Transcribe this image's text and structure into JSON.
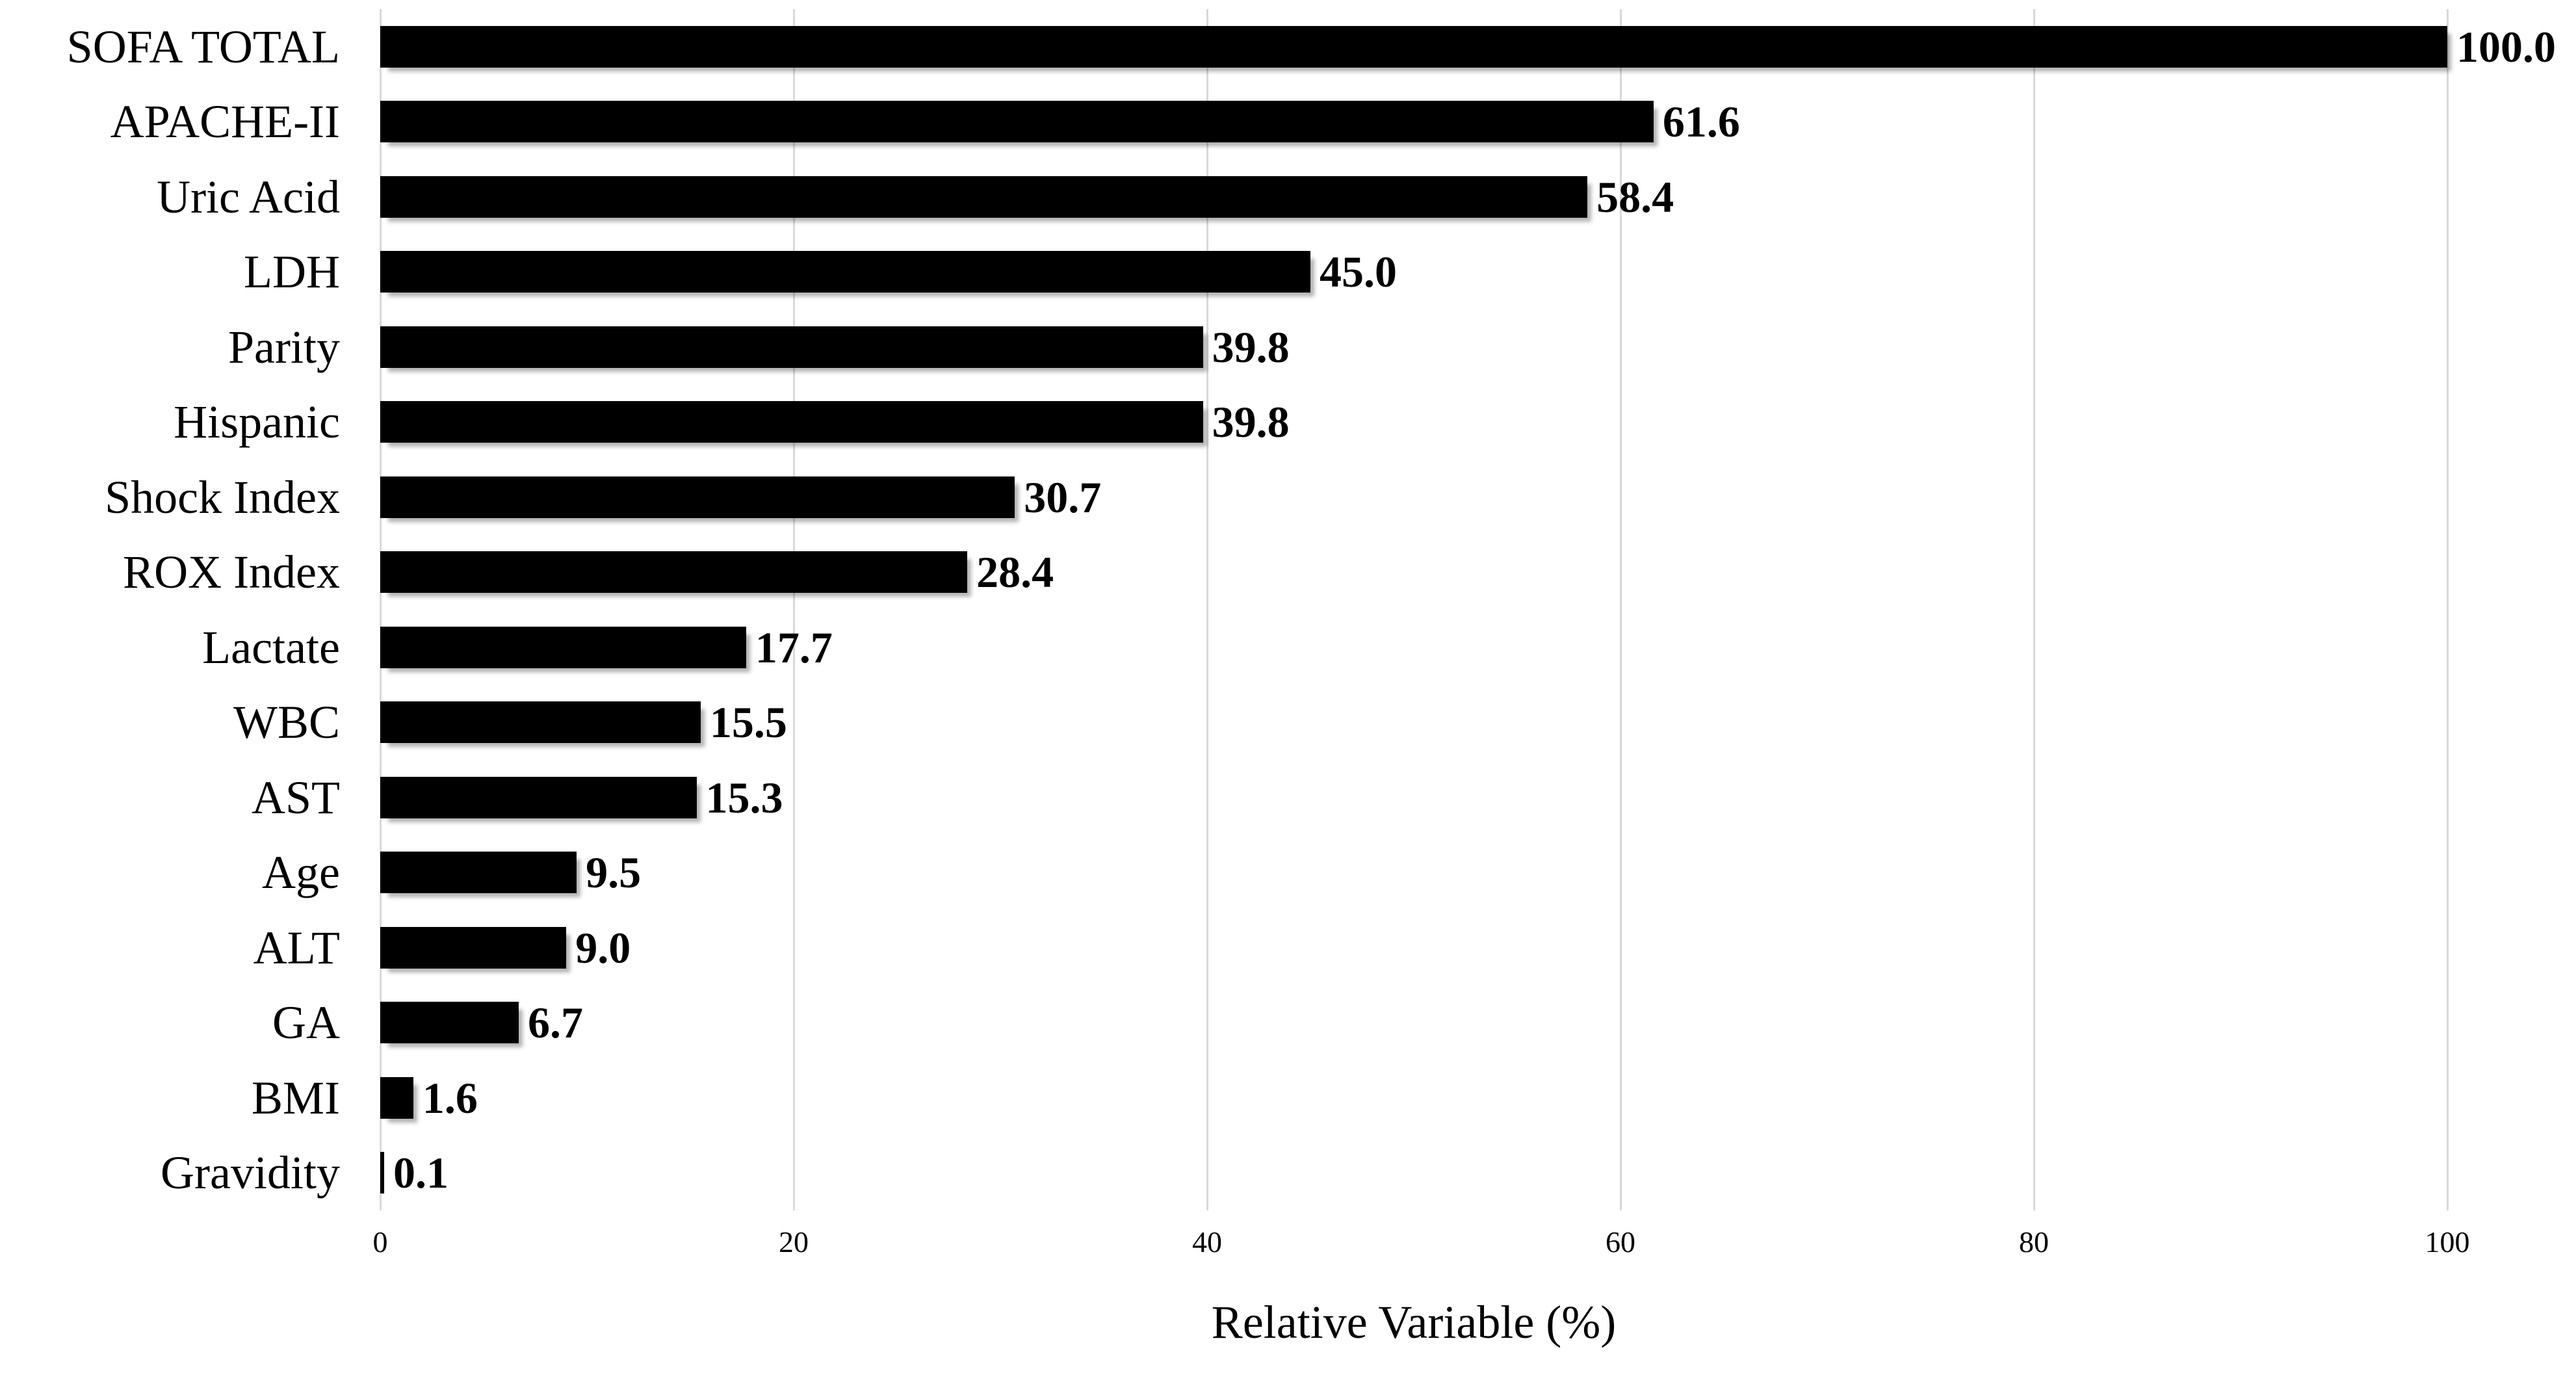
{
  "chart_data": {
    "type": "bar",
    "orientation": "horizontal",
    "title": "",
    "categories": [
      "SOFA TOTAL",
      "APACHE-II",
      "Uric Acid",
      "LDH",
      "Parity",
      "Hispanic",
      "Shock Index",
      "ROX Index",
      "Lactate",
      "WBC",
      "AST",
      "Age",
      "ALT",
      "GA",
      "BMI",
      "Gravidity"
    ],
    "values": [
      100.0,
      61.6,
      58.4,
      45.0,
      39.8,
      39.8,
      30.7,
      28.4,
      17.7,
      15.5,
      15.3,
      9.5,
      9.0,
      6.7,
      1.6,
      0.1
    ],
    "value_labels": [
      "100.0",
      "61.6",
      "58.4",
      "45.0",
      "39.8",
      "39.8",
      "30.7",
      "28.4",
      "17.7",
      "15.5",
      "15.3",
      "9.5",
      "9.0",
      "6.7",
      "1.6",
      "0.1"
    ],
    "xlabel": "Relative Variable (%)",
    "ylabel": "",
    "xlim": [
      0,
      100
    ],
    "x_ticks": [
      0,
      20,
      40,
      60,
      80,
      100
    ],
    "x_tick_labels": [
      "0",
      "20",
      "40",
      "60",
      "80",
      "100"
    ],
    "grid": "vertical",
    "legend": "none",
    "bar_color": "#000000",
    "gridline_color": "#d9d9d9",
    "text_color": "#000000"
  }
}
